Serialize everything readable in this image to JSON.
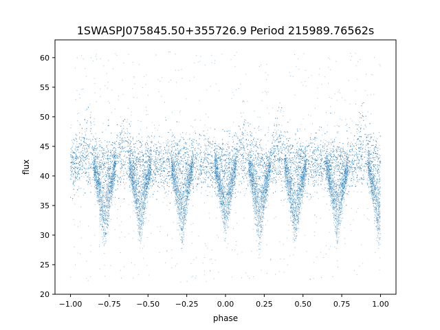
{
  "chart_data": {
    "type": "scatter",
    "title": "1SWASPJ075845.50+355726.9 Period 215989.76562s",
    "xlabel": "phase",
    "ylabel": "flux",
    "xlim": [
      -1.1,
      1.1
    ],
    "ylim": [
      20,
      63
    ],
    "xticks": [
      -1.0,
      -0.75,
      -0.5,
      -0.25,
      0.0,
      0.25,
      0.5,
      0.75,
      1.0
    ],
    "xtick_labels": [
      "−1.00",
      "−0.75",
      "−0.50",
      "−0.25",
      "0.00",
      "0.25",
      "0.50",
      "0.75",
      "1.00"
    ],
    "yticks": [
      20,
      25,
      30,
      35,
      40,
      45,
      50,
      55,
      60
    ],
    "ytick_labels": [
      "20",
      "25",
      "30",
      "35",
      "40",
      "45",
      "50",
      "55",
      "60"
    ],
    "grid": false,
    "legend": "none",
    "marker_color": "#1f77b4",
    "phase_range": [
      -1.0,
      1.0
    ],
    "baseline_flux": 42,
    "baseline_spread": [
      38,
      47
    ],
    "outlier_range": [
      22,
      61
    ],
    "dips": [
      {
        "phase": -0.78,
        "min_flux": 28
      },
      {
        "phase": -0.55,
        "min_flux": 29
      },
      {
        "phase": -0.28,
        "min_flux": 29
      },
      {
        "phase": 0.0,
        "min_flux": 30
      },
      {
        "phase": 0.22,
        "min_flux": 28
      },
      {
        "phase": 0.45,
        "min_flux": 29
      },
      {
        "phase": 0.72,
        "min_flux": 29
      },
      {
        "phase": 0.99,
        "min_flux": 29
      }
    ],
    "upper_bumps": [
      {
        "phase": -0.88,
        "max_flux": 50
      },
      {
        "phase": -0.65,
        "max_flux": 50
      },
      {
        "phase": 0.12,
        "max_flux": 50
      },
      {
        "phase": 0.35,
        "max_flux": 50
      },
      {
        "phase": 0.88,
        "max_flux": 53
      }
    ]
  }
}
